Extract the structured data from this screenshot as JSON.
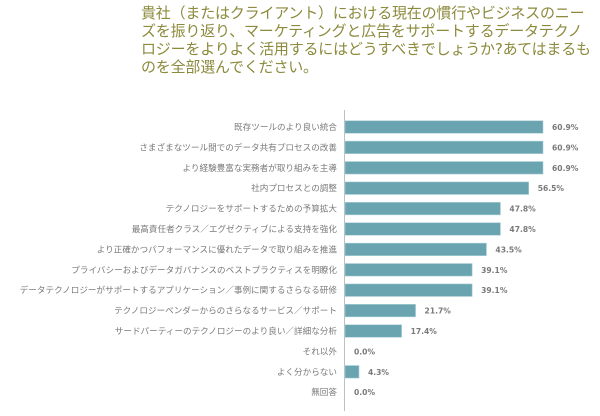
{
  "chart_data": {
    "type": "bar",
    "orientation": "horizontal",
    "title": "貴社（またはクライアント）における現在の慣行やビジネスのニーズを振り返り、マーケティングと広告をサポートするデータテクノロジーをよりよく活用するにはどうすべきでしょうか?あてはまるものを全部選んでください。",
    "xlabel": "",
    "ylabel": "",
    "unit": "%",
    "xlim": [
      0,
      70
    ],
    "grid": false,
    "bar_color": "#6aa4b0",
    "title_color": "#8c8a3c",
    "categories": [
      "既存ツールのより良い統合",
      "さまざまなツール間でのデータ共有プロセスの改善",
      "より経験豊富な実務者が取り組みを主導",
      "社内プロセスとの調整",
      "テクノロジーをサポートするための予算拡大",
      "最高責任者クラス／エグゼクティブによる支持を強化",
      "より正確かつパフォーマンスに優れたデータで取り組みを推進",
      "プライバシーおよびデータガバナンスのベストプラクティスを明瞭化",
      "データテクノロジーがサポートするアプリケーション／事例に関するさらなる研修",
      "テクノロジーベンダーからのさらなるサービス／サポート",
      "サードパーティーのテクノロジーのより良い／詳細な分析",
      "それ以外",
      "よく分からない",
      "無回答"
    ],
    "values": [
      60.9,
      60.9,
      60.9,
      56.5,
      47.8,
      47.8,
      43.5,
      39.1,
      39.1,
      21.7,
      17.4,
      0.0,
      4.3,
      0.0
    ],
    "value_labels": [
      "60.9%",
      "60.9%",
      "60.9%",
      "56.5%",
      "47.8%",
      "47.8%",
      "43.5%",
      "39.1%",
      "39.1%",
      "21.7%",
      "17.4%",
      "0.0%",
      "4.3%",
      "0.0%"
    ]
  }
}
